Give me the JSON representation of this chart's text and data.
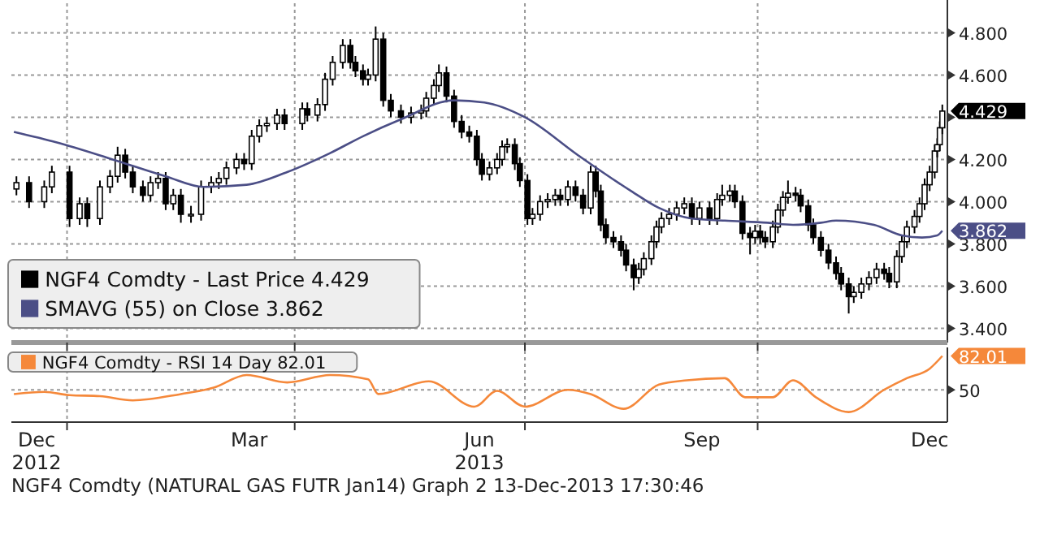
{
  "chart_data": [
    {
      "type": "candlestick",
      "xlim": [
        "2012-12-10",
        "2013-12-15"
      ],
      "xticks": [
        {
          "value": "2013-01-01",
          "label": null
        },
        {
          "value": "2013-04-01",
          "label": null
        },
        {
          "value": "2013-07-01",
          "label": null
        },
        {
          "value": "2013-10-01",
          "label": null
        }
      ],
      "ylim": [
        3.34,
        4.94
      ],
      "yticks": [
        {
          "value": 3.4,
          "label": "3.400"
        },
        {
          "value": 3.6,
          "label": "3.600"
        },
        {
          "value": 3.8,
          "label": "3.800"
        },
        {
          "value": 4.0,
          "label": "4.000"
        },
        {
          "value": 4.2,
          "label": "4.200"
        },
        {
          "value": 4.4,
          "label": null
        },
        {
          "value": 4.6,
          "label": "4.600"
        },
        {
          "value": 4.8,
          "label": "4.800"
        }
      ],
      "tick_labels": "y",
      "grid": true,
      "legend": "bottom left",
      "series": [
        {
          "name": "NGF4 Comdty - Last Price 4.429",
          "color": "#000000",
          "x": [
            "2012-12-12",
            "2012-12-17",
            "2012-12-23",
            "2012-12-26",
            "2013-01-02",
            "2013-01-06",
            "2013-01-09",
            "2013-01-14",
            "2013-01-18",
            "2013-01-21",
            "2013-01-24",
            "2013-01-27",
            "2013-01-31",
            "2013-02-03",
            "2013-02-06",
            "2013-02-09",
            "2013-02-12",
            "2013-02-15",
            "2013-02-19",
            "2013-02-23",
            "2013-02-27",
            "2013-03-02",
            "2013-03-05",
            "2013-03-09",
            "2013-03-12",
            "2013-03-15",
            "2013-03-18",
            "2013-03-21",
            "2013-03-25",
            "2013-03-28",
            "2013-04-04",
            "2013-04-06",
            "2013-04-10",
            "2013-04-13",
            "2013-04-16",
            "2013-04-20",
            "2013-04-23",
            "2013-04-25",
            "2013-04-28",
            "2013-04-30",
            "2013-05-03",
            "2013-05-06",
            "2013-05-09",
            "2013-05-13",
            "2013-05-17",
            "2013-05-21",
            "2013-05-23",
            "2013-05-26",
            "2013-05-28",
            "2013-05-31",
            "2013-06-03",
            "2013-06-06",
            "2013-06-09",
            "2013-06-12",
            "2013-06-14",
            "2013-06-17",
            "2013-06-20",
            "2013-06-22",
            "2013-06-24",
            "2013-06-27",
            "2013-06-29",
            "2013-07-02",
            "2013-07-04",
            "2013-07-07",
            "2013-07-10",
            "2013-07-13",
            "2013-07-15",
            "2013-07-18",
            "2013-07-21",
            "2013-07-24",
            "2013-07-27",
            "2013-07-29",
            "2013-07-31",
            "2013-08-02",
            "2013-08-05",
            "2013-08-08",
            "2013-08-10",
            "2013-08-13",
            "2013-08-15",
            "2013-08-17",
            "2013-08-20",
            "2013-08-22",
            "2013-08-24",
            "2013-08-27",
            "2013-08-30",
            "2013-09-02",
            "2013-09-05",
            "2013-09-08",
            "2013-09-12",
            "2013-09-15",
            "2013-09-17",
            "2013-09-20",
            "2013-09-22",
            "2013-09-25",
            "2013-09-28",
            "2013-09-30",
            "2013-10-02",
            "2013-10-04",
            "2013-10-07",
            "2013-10-09",
            "2013-10-11",
            "2013-10-13",
            "2013-10-16",
            "2013-10-18",
            "2013-10-21",
            "2013-10-23",
            "2013-10-26",
            "2013-10-29",
            "2013-11-01",
            "2013-11-03",
            "2013-11-06",
            "2013-11-08",
            "2013-11-11",
            "2013-11-14",
            "2013-11-17",
            "2013-11-20",
            "2013-11-22",
            "2013-11-25",
            "2013-11-27",
            "2013-11-29",
            "2013-12-02",
            "2013-12-04",
            "2013-12-06",
            "2013-12-08",
            "2013-12-10",
            "2013-12-11",
            "2013-12-12",
            "2013-12-13"
          ],
          "ohlc": [
            [
              4.06,
              4.12,
              4.03,
              4.09
            ],
            [
              4.09,
              4.12,
              3.97,
              4.0
            ],
            [
              4.0,
              4.1,
              3.97,
              4.07
            ],
            [
              4.07,
              4.17,
              4.04,
              4.14
            ],
            [
              4.14,
              4.17,
              3.88,
              3.92
            ],
            [
              3.92,
              4.02,
              3.89,
              3.99
            ],
            [
              3.99,
              4.02,
              3.88,
              3.92
            ],
            [
              3.92,
              4.1,
              3.89,
              4.07
            ],
            [
              4.07,
              4.15,
              4.04,
              4.12
            ],
            [
              4.12,
              4.26,
              4.09,
              4.22
            ],
            [
              4.22,
              4.25,
              4.11,
              4.14
            ],
            [
              4.14,
              4.17,
              4.04,
              4.07
            ],
            [
              4.07,
              4.1,
              4.0,
              4.03
            ],
            [
              4.03,
              4.12,
              4.0,
              4.09
            ],
            [
              4.09,
              4.14,
              4.06,
              4.11
            ],
            [
              4.11,
              4.14,
              3.96,
              3.99
            ],
            [
              3.99,
              4.06,
              3.96,
              4.03
            ],
            [
              4.03,
              4.06,
              3.9,
              3.94
            ],
            [
              3.94,
              3.98,
              3.9,
              3.94
            ],
            [
              3.94,
              4.1,
              3.91,
              4.07
            ],
            [
              4.07,
              4.12,
              4.04,
              4.09
            ],
            [
              4.09,
              4.14,
              4.06,
              4.11
            ],
            [
              4.11,
              4.19,
              4.08,
              4.16
            ],
            [
              4.16,
              4.23,
              4.13,
              4.2
            ],
            [
              4.2,
              4.23,
              4.15,
              4.18
            ],
            [
              4.18,
              4.34,
              4.15,
              4.31
            ],
            [
              4.31,
              4.39,
              4.28,
              4.36
            ],
            [
              4.36,
              4.4,
              4.33,
              4.37
            ],
            [
              4.37,
              4.44,
              4.34,
              4.41
            ],
            [
              4.41,
              4.44,
              4.34,
              4.37
            ],
            [
              4.37,
              4.47,
              4.34,
              4.44
            ],
            [
              4.44,
              4.47,
              4.38,
              4.41
            ],
            [
              4.41,
              4.49,
              4.38,
              4.46
            ],
            [
              4.46,
              4.61,
              4.43,
              4.58
            ],
            [
              4.58,
              4.69,
              4.55,
              4.66
            ],
            [
              4.66,
              4.77,
              4.63,
              4.74
            ],
            [
              4.74,
              4.77,
              4.63,
              4.66
            ],
            [
              4.66,
              4.69,
              4.59,
              4.62
            ],
            [
              4.62,
              4.65,
              4.55,
              4.58
            ],
            [
              4.58,
              4.63,
              4.55,
              4.6
            ],
            [
              4.6,
              4.83,
              4.57,
              4.77
            ],
            [
              4.77,
              4.8,
              4.45,
              4.48
            ],
            [
              4.48,
              4.51,
              4.4,
              4.43
            ],
            [
              4.43,
              4.46,
              4.37,
              4.4
            ],
            [
              4.4,
              4.45,
              4.37,
              4.42
            ],
            [
              4.42,
              4.46,
              4.39,
              4.43
            ],
            [
              4.43,
              4.52,
              4.4,
              4.49
            ],
            [
              4.49,
              4.58,
              4.46,
              4.55
            ],
            [
              4.55,
              4.65,
              4.52,
              4.61
            ],
            [
              4.61,
              4.64,
              4.47,
              4.5
            ],
            [
              4.5,
              4.53,
              4.35,
              4.38
            ],
            [
              4.38,
              4.41,
              4.3,
              4.33
            ],
            [
              4.33,
              4.36,
              4.28,
              4.31
            ],
            [
              4.31,
              4.34,
              4.17,
              4.2
            ],
            [
              4.2,
              4.23,
              4.1,
              4.13
            ],
            [
              4.13,
              4.19,
              4.1,
              4.16
            ],
            [
              4.16,
              4.23,
              4.13,
              4.2
            ],
            [
              4.2,
              4.29,
              4.17,
              4.26
            ],
            [
              4.26,
              4.3,
              4.23,
              4.27
            ],
            [
              4.27,
              4.3,
              4.15,
              4.18
            ],
            [
              4.18,
              4.21,
              4.07,
              4.1
            ],
            [
              4.1,
              4.13,
              3.89,
              3.92
            ],
            [
              3.92,
              3.97,
              3.89,
              3.94
            ],
            [
              3.94,
              4.03,
              3.91,
              4.0
            ],
            [
              4.0,
              4.04,
              3.97,
              4.01
            ],
            [
              4.01,
              4.06,
              3.98,
              4.03
            ],
            [
              4.03,
              4.06,
              3.98,
              4.01
            ],
            [
              4.01,
              4.1,
              3.98,
              4.07
            ],
            [
              4.07,
              4.1,
              4.0,
              4.03
            ],
            [
              4.03,
              4.06,
              3.94,
              3.97
            ],
            [
              3.97,
              4.17,
              3.94,
              4.14
            ],
            [
              4.14,
              4.17,
              4.02,
              4.05
            ],
            [
              4.05,
              4.08,
              3.86,
              3.89
            ],
            [
              3.89,
              3.92,
              3.8,
              3.83
            ],
            [
              3.83,
              3.86,
              3.78,
              3.81
            ],
            [
              3.81,
              3.84,
              3.74,
              3.77
            ],
            [
              3.77,
              3.8,
              3.67,
              3.7
            ],
            [
              3.7,
              3.73,
              3.58,
              3.64
            ],
            [
              3.64,
              3.71,
              3.61,
              3.68
            ],
            [
              3.68,
              3.76,
              3.65,
              3.73
            ],
            [
              3.73,
              3.84,
              3.7,
              3.81
            ],
            [
              3.81,
              3.91,
              3.78,
              3.88
            ],
            [
              3.88,
              3.95,
              3.85,
              3.92
            ],
            [
              3.92,
              3.97,
              3.89,
              3.94
            ],
            [
              3.94,
              4.0,
              3.91,
              3.97
            ],
            [
              3.97,
              4.02,
              3.94,
              3.99
            ],
            [
              3.99,
              4.02,
              3.89,
              3.92
            ],
            [
              3.92,
              4.0,
              3.89,
              3.97
            ],
            [
              3.97,
              4.0,
              3.89,
              3.92
            ],
            [
              3.92,
              4.04,
              3.89,
              4.01
            ],
            [
              4.01,
              4.08,
              3.98,
              4.03
            ],
            [
              4.03,
              4.08,
              4.0,
              4.05
            ],
            [
              4.05,
              4.08,
              3.97,
              4.0
            ],
            [
              4.0,
              4.03,
              3.82,
              3.85
            ],
            [
              3.85,
              3.88,
              3.75,
              3.83
            ],
            [
              3.83,
              3.89,
              3.8,
              3.86
            ],
            [
              3.86,
              3.89,
              3.8,
              3.83
            ],
            [
              3.83,
              3.86,
              3.78,
              3.81
            ],
            [
              3.81,
              3.91,
              3.78,
              3.88
            ],
            [
              3.88,
              3.99,
              3.85,
              3.96
            ],
            [
              3.96,
              4.05,
              3.93,
              4.02
            ],
            [
              4.02,
              4.1,
              3.99,
              4.04
            ],
            [
              4.04,
              4.07,
              4.0,
              4.03
            ],
            [
              4.03,
              4.06,
              3.95,
              3.98
            ],
            [
              3.98,
              4.01,
              3.86,
              3.89
            ],
            [
              3.89,
              3.92,
              3.8,
              3.83
            ],
            [
              3.83,
              3.86,
              3.74,
              3.77
            ],
            [
              3.77,
              3.8,
              3.68,
              3.71
            ],
            [
              3.71,
              3.74,
              3.63,
              3.66
            ],
            [
              3.66,
              3.69,
              3.58,
              3.61
            ],
            [
              3.61,
              3.64,
              3.47,
              3.55
            ],
            [
              3.55,
              3.6,
              3.52,
              3.57
            ],
            [
              3.57,
              3.64,
              3.54,
              3.61
            ],
            [
              3.61,
              3.67,
              3.58,
              3.64
            ],
            [
              3.64,
              3.71,
              3.61,
              3.68
            ],
            [
              3.68,
              3.71,
              3.63,
              3.66
            ],
            [
              3.66,
              3.69,
              3.59,
              3.62
            ],
            [
              3.62,
              3.77,
              3.59,
              3.74
            ],
            [
              3.74,
              3.84,
              3.71,
              3.81
            ],
            [
              3.81,
              3.91,
              3.78,
              3.88
            ],
            [
              3.88,
              3.96,
              3.85,
              3.93
            ],
            [
              3.93,
              4.02,
              3.9,
              3.99
            ],
            [
              3.99,
              4.11,
              3.96,
              4.08
            ],
            [
              4.08,
              4.17,
              4.05,
              4.14
            ],
            [
              4.14,
              4.27,
              4.11,
              4.24
            ],
            [
              4.24,
              4.3,
              4.21,
              4.27
            ],
            [
              4.27,
              4.38,
              4.24,
              4.35
            ],
            [
              4.35,
              4.46,
              4.32,
              4.429
            ]
          ],
          "value_labels": [
            null,
            null,
            null,
            null,
            null,
            null,
            null,
            null,
            null,
            null,
            null,
            null,
            null,
            null,
            null,
            null,
            null,
            null,
            null,
            null,
            null,
            null,
            null,
            null,
            null,
            null,
            null,
            null,
            null,
            null,
            null,
            null,
            null,
            null,
            null,
            null,
            null,
            null,
            null,
            null,
            null,
            null,
            null,
            null,
            null,
            null,
            null,
            null,
            null,
            null,
            null,
            null,
            null,
            null,
            null,
            null,
            null,
            null,
            null,
            null,
            null,
            null,
            null,
            null,
            null,
            null,
            null,
            null,
            null,
            null,
            null,
            null,
            null,
            null,
            null,
            null,
            null,
            null,
            null,
            null,
            null,
            null,
            null,
            null,
            null,
            null,
            null,
            null,
            null,
            null,
            null,
            null,
            null,
            null,
            null,
            null,
            null,
            null,
            null,
            null,
            null,
            null,
            null,
            null,
            null,
            null,
            null,
            null,
            null,
            null,
            null,
            null,
            null,
            null,
            null,
            null,
            null,
            null,
            null,
            null,
            null,
            null,
            null,
            null,
            null,
            null,
            null,
            "4.429"
          ]
        },
        {
          "name": "SMAVG (55) on Close 3.862",
          "type": "line",
          "color": "#4b4e86",
          "x": [
            "2012-12-11",
            "2012-12-28",
            "2013-01-19",
            "2013-02-09",
            "2013-02-24",
            "2013-03-13",
            "2013-03-29",
            "2013-04-15",
            "2013-04-28",
            "2013-05-13",
            "2013-06-03",
            "2013-06-15",
            "2013-07-01",
            "2013-07-22",
            "2013-08-12",
            "2013-08-23",
            "2013-09-05",
            "2013-09-18",
            "2013-10-05",
            "2013-10-15",
            "2013-10-26",
            "2013-11-01",
            "2013-11-16",
            "2013-11-27",
            "2013-12-05",
            "2013-12-11",
            "2013-12-13"
          ],
          "values": [
            4.33,
            4.28,
            4.2,
            4.12,
            4.07,
            4.08,
            4.14,
            4.23,
            4.31,
            4.39,
            4.48,
            4.47,
            4.4,
            4.22,
            4.05,
            3.97,
            3.92,
            3.91,
            3.9,
            3.89,
            3.9,
            3.91,
            3.89,
            3.84,
            3.83,
            3.84,
            3.862
          ],
          "value_labels": [
            null,
            null,
            null,
            null,
            null,
            null,
            null,
            null,
            null,
            null,
            null,
            null,
            null,
            null,
            null,
            null,
            null,
            null,
            null,
            null,
            null,
            null,
            null,
            null,
            null,
            null,
            "3.862"
          ]
        }
      ]
    },
    {
      "type": "line",
      "xlim": [
        "2012-12-10",
        "2013-12-15"
      ],
      "xticks": [
        {
          "value": "2012-12-20",
          "label": "Dec\n2012"
        },
        {
          "value": "2013-01-01",
          "label": null
        },
        {
          "value": "2013-03-14",
          "label": "Mar"
        },
        {
          "value": "2013-04-01",
          "label": null
        },
        {
          "value": "2013-06-13",
          "label": "Jun\n2013"
        },
        {
          "value": "2013-07-01",
          "label": null
        },
        {
          "value": "2013-09-09",
          "label": "Sep"
        },
        {
          "value": "2013-10-01",
          "label": null
        },
        {
          "value": "2013-12-08",
          "label": "Dec"
        }
      ],
      "ylim": [
        21,
        87
      ],
      "yticks": [
        50,
        {
          "value": 82.01,
          "label": "82.01"
        }
      ],
      "grid": true,
      "legend": "top left",
      "annotations": [
        "NGF4 Comdty (NATURAL GAS FUTR  Jan14) Graph 2  13-Dec-2013 17:30:46"
      ],
      "series": [
        {
          "name": "NGF4 Comdty - RSI 14 Day 82.01",
          "color": "#f5883a",
          "x": [
            "2012-12-11",
            "2012-12-23",
            "2013-01-02",
            "2013-01-14",
            "2013-01-27",
            "2013-02-15",
            "2013-02-28",
            "2013-03-13",
            "2013-03-29",
            "2013-04-15",
            "2013-04-30",
            "2013-05-04",
            "2013-05-24",
            "2013-06-11",
            "2013-06-20",
            "2013-07-01",
            "2013-07-18",
            "2013-07-27",
            "2013-08-09",
            "2013-08-23",
            "2013-09-03",
            "2013-09-18",
            "2013-09-26",
            "2013-10-07",
            "2013-10-15",
            "2013-10-24",
            "2013-11-06",
            "2013-11-20",
            "2013-11-29",
            "2013-12-08",
            "2013-12-13"
          ],
          "values": [
            46,
            48,
            45,
            44,
            40,
            46,
            52,
            64,
            57,
            64,
            60,
            46,
            58,
            34,
            49,
            34,
            50,
            46,
            32,
            55,
            59,
            61,
            43,
            43,
            59,
            43,
            29,
            50,
            61,
            70,
            82.01
          ]
        }
      ]
    }
  ]
}
